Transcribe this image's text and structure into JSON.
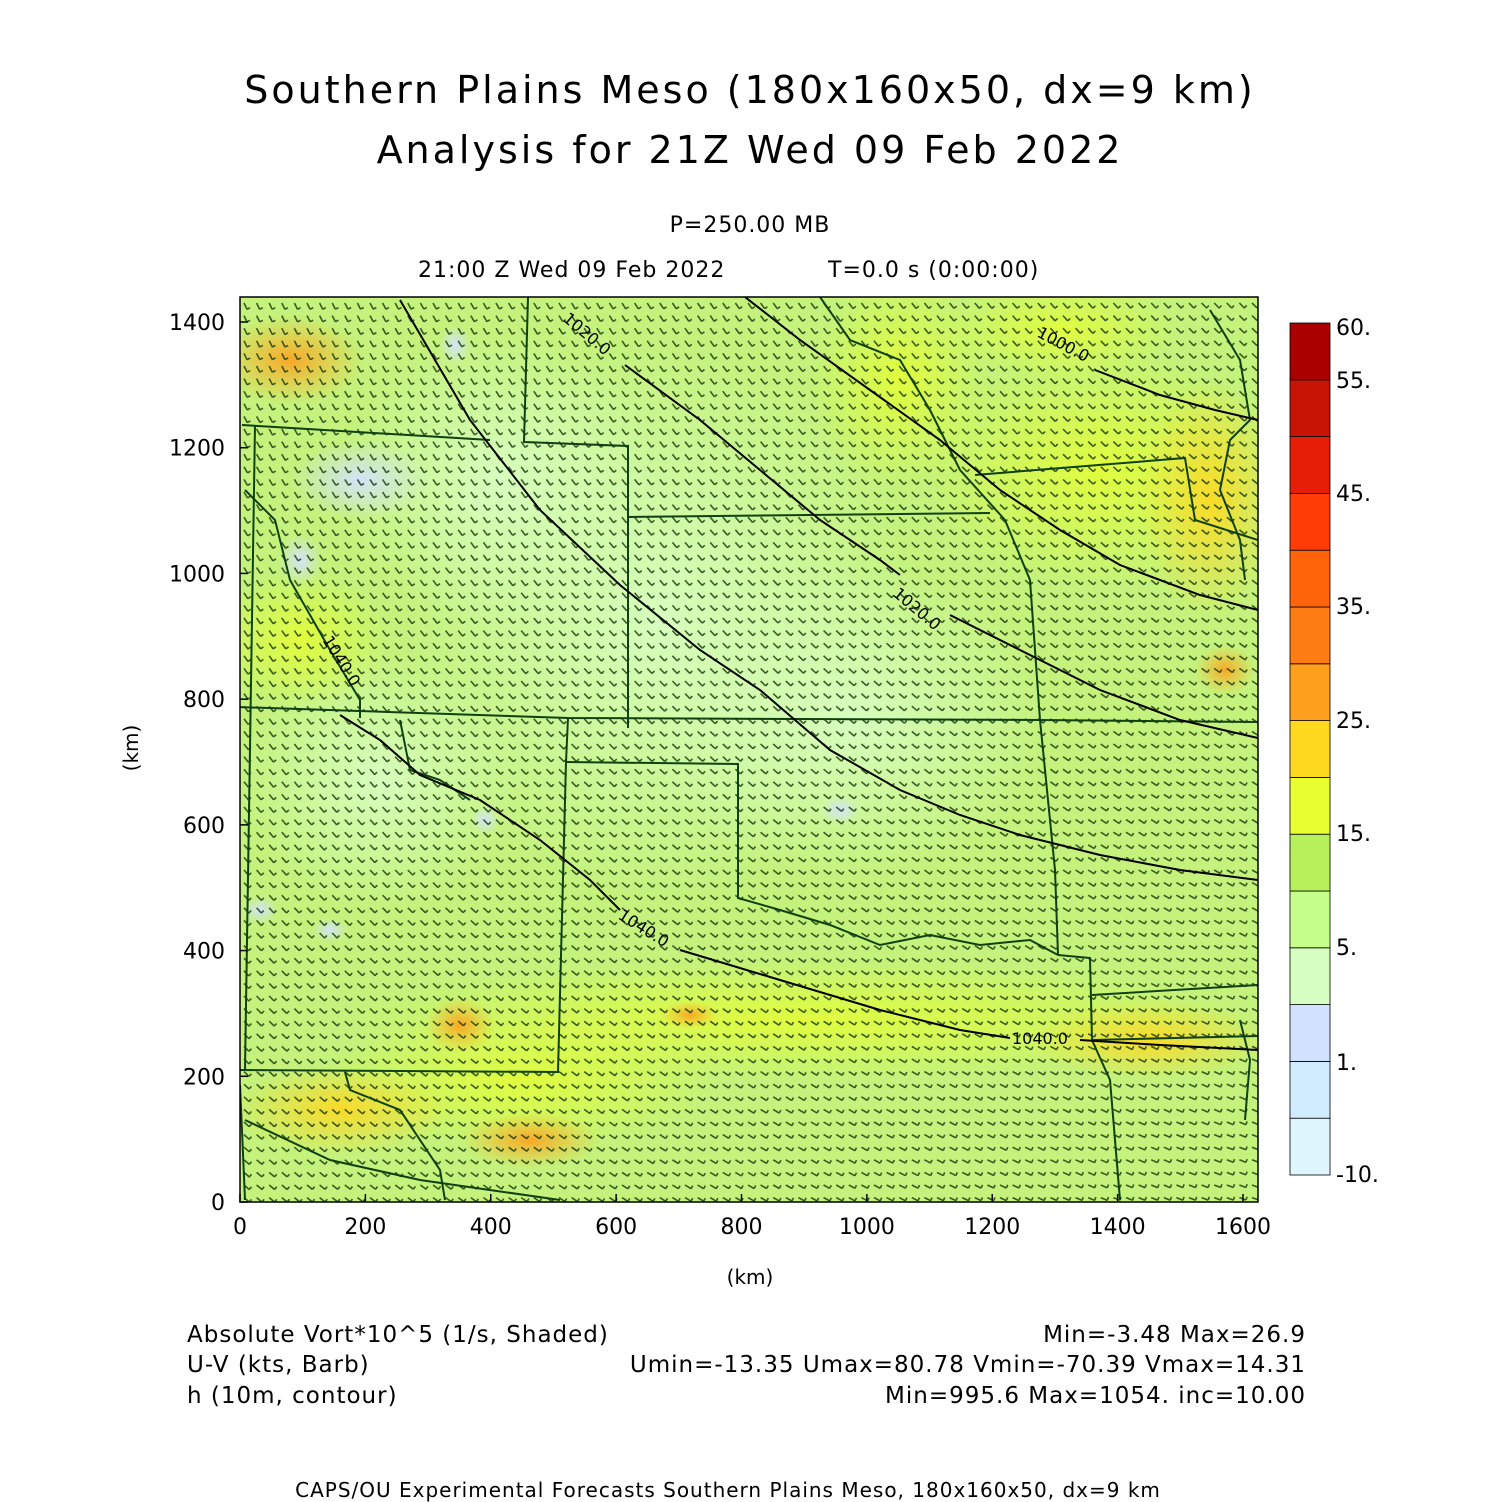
{
  "title": {
    "line1": "Southern Plains Meso (180x160x50, dx=9 km)",
    "line2": "Analysis for 21Z Wed 09 Feb 2022"
  },
  "subtitle": {
    "level": "P=250.00 MB",
    "time": "21:00 Z Wed 09 Feb 2022",
    "forecast_time": "T=0.0 s (0:00:00)"
  },
  "axes": {
    "x_label": "(km)",
    "y_label": "(km)",
    "x_ticks": [
      "0",
      "200",
      "400",
      "600",
      "800",
      "1000",
      "1200",
      "1400",
      "1600"
    ],
    "y_ticks": [
      "0",
      "200",
      "400",
      "600",
      "800",
      "1000",
      "1200",
      "1400"
    ]
  },
  "colorbar": {
    "labels": [
      "60.",
      "55.",
      "45.",
      "35.",
      "25.",
      "15.",
      "5.",
      "1.",
      "-10."
    ],
    "colors": [
      "#e0f6ff",
      "#d2ecff",
      "#d2e1ff",
      "#d8ffc2",
      "#c7ff8c",
      "#b6f05a",
      "#e8ff32",
      "#ffd820",
      "#ffa01e",
      "#ff7d14",
      "#ff640a",
      "#ff3c05",
      "#e61e05",
      "#c81405",
      "#aa0000"
    ]
  },
  "contour_labels": [
    "1020.0",
    "1000.0",
    "1020.0",
    "1040.0",
    "1040.0",
    "1040.0"
  ],
  "legend": {
    "field1": "Absolute Vort*10^5 (1/s, Shaded)",
    "field1_stats": "Min=-3.48 Max=26.9",
    "field2": "U-V (kts, Barb)",
    "field2_stats": "Umin=-13.35 Umax=80.78 Vmin=-70.39 Vmax=14.31",
    "field3": "h (10m, contour)",
    "field3_stats": "Min=995.6 Max=1054. inc=10.00"
  },
  "footer": "CAPS/OU Experimental Forecasts  Southern Plains Meso, 180x160x50, dx=9 km"
}
